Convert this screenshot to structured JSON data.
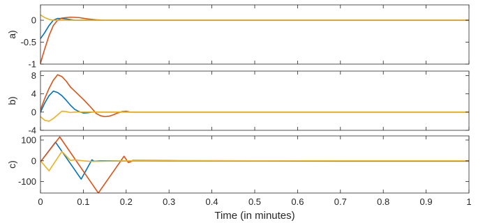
{
  "chart_data": {
    "type": "line",
    "xlabel": "Time (in minutes)",
    "x_ticks": [
      "0",
      "0.1",
      "0.2",
      "0.3",
      "0.4",
      "0.5",
      "0.6",
      "0.7",
      "0.8",
      "0.9",
      "1"
    ],
    "xlim": [
      0,
      1
    ],
    "colors": {
      "s1": "#0072BD",
      "s2": "#D95319",
      "s3": "#EDB120"
    },
    "panels": [
      {
        "label": "a)",
        "ylim": [
          -1,
          0.35
        ],
        "y_ticks": [
          "0",
          "-0.5",
          "-1"
        ],
        "y_tick_values": [
          0,
          -0.5,
          -1
        ],
        "series": [
          {
            "color": "#0072BD",
            "points": [
              [
                0,
                -0.42
              ],
              [
                0.01,
                -0.28
              ],
              [
                0.02,
                -0.12
              ],
              [
                0.03,
                0.0
              ],
              [
                0.04,
                0.04
              ],
              [
                0.05,
                0.04
              ],
              [
                0.06,
                0.03
              ],
              [
                0.08,
                0.0
              ],
              [
                0.1,
                0.0
              ],
              [
                1,
                0.0
              ]
            ]
          },
          {
            "color": "#D95319",
            "points": [
              [
                0,
                -0.98
              ],
              [
                0.01,
                -0.65
              ],
              [
                0.02,
                -0.35
              ],
              [
                0.03,
                -0.12
              ],
              [
                0.04,
                0.0
              ],
              [
                0.05,
                0.05
              ],
              [
                0.07,
                0.07
              ],
              [
                0.09,
                0.06
              ],
              [
                0.11,
                0.03
              ],
              [
                0.13,
                0.01
              ],
              [
                0.15,
                0.0
              ],
              [
                1,
                0.0
              ]
            ]
          },
          {
            "color": "#EDB120",
            "points": [
              [
                0,
                0.12
              ],
              [
                0.01,
                0.06
              ],
              [
                0.02,
                0.02
              ],
              [
                0.03,
                0.0
              ],
              [
                1,
                0.0
              ]
            ]
          }
        ]
      },
      {
        "label": "b)",
        "ylim": [
          -4,
          9
        ],
        "y_ticks": [
          "8",
          "4",
          "0",
          "-4"
        ],
        "y_tick_values": [
          8,
          4,
          0,
          -4
        ],
        "series": [
          {
            "color": "#0072BD",
            "points": [
              [
                0,
                0.0
              ],
              [
                0.01,
                2.0
              ],
              [
                0.02,
                3.6
              ],
              [
                0.03,
                4.6
              ],
              [
                0.04,
                4.3
              ],
              [
                0.05,
                3.6
              ],
              [
                0.06,
                2.6
              ],
              [
                0.07,
                1.5
              ],
              [
                0.08,
                0.6
              ],
              [
                0.09,
                0.1
              ],
              [
                0.1,
                -0.2
              ],
              [
                0.11,
                -0.15
              ],
              [
                0.12,
                0.0
              ],
              [
                1,
                0.0
              ]
            ]
          },
          {
            "color": "#D95319",
            "points": [
              [
                0,
                0.5
              ],
              [
                0.01,
                3.0
              ],
              [
                0.02,
                5.2
              ],
              [
                0.03,
                7.0
              ],
              [
                0.04,
                8.2
              ],
              [
                0.05,
                7.8
              ],
              [
                0.06,
                6.8
              ],
              [
                0.07,
                5.5
              ],
              [
                0.08,
                4.6
              ],
              [
                0.09,
                3.7
              ],
              [
                0.1,
                2.8
              ],
              [
                0.11,
                1.8
              ],
              [
                0.12,
                0.8
              ],
              [
                0.13,
                -0.3
              ],
              [
                0.14,
                -0.8
              ],
              [
                0.15,
                -1.0
              ],
              [
                0.16,
                -0.9
              ],
              [
                0.17,
                -0.6
              ],
              [
                0.18,
                -0.2
              ],
              [
                0.19,
                0.1
              ],
              [
                0.2,
                0.2
              ],
              [
                0.21,
                0.0
              ],
              [
                1,
                0.0
              ]
            ]
          },
          {
            "color": "#EDB120",
            "points": [
              [
                0,
                -1.0
              ],
              [
                0.01,
                -1.8
              ],
              [
                0.02,
                -2.0
              ],
              [
                0.03,
                -1.4
              ],
              [
                0.04,
                -0.6
              ],
              [
                0.05,
                0.2
              ],
              [
                0.06,
                0.1
              ],
              [
                0.07,
                -0.1
              ],
              [
                0.08,
                0.0
              ],
              [
                1,
                0.0
              ]
            ]
          }
        ]
      },
      {
        "label": "c)",
        "ylim": [
          -155,
          120
        ],
        "y_ticks": [
          "100",
          "0",
          "-100"
        ],
        "y_tick_values": [
          100,
          0,
          -100
        ],
        "series": [
          {
            "color": "#0072BD",
            "points": [
              [
                0,
                -5
              ],
              [
                0.035,
                90
              ],
              [
                0.095,
                -88
              ],
              [
                0.12,
                5
              ],
              [
                0.125,
                -2
              ],
              [
                0.14,
                0
              ],
              [
                0.3,
                -1
              ],
              [
                0.5,
                -1
              ],
              [
                0.7,
                -2
              ],
              [
                0.9,
                -2
              ],
              [
                1,
                -2
              ]
            ]
          },
          {
            "color": "#D95319",
            "points": [
              [
                0,
                -5
              ],
              [
                0.045,
                115
              ],
              [
                0.135,
                -155
              ],
              [
                0.195,
                22
              ],
              [
                0.205,
                -8
              ],
              [
                0.21,
                -5
              ],
              [
                0.215,
                2
              ],
              [
                0.3,
                1
              ],
              [
                0.5,
                0
              ],
              [
                0.7,
                0
              ],
              [
                1,
                0
              ]
            ]
          },
          {
            "color": "#EDB120",
            "points": [
              [
                0,
                0
              ],
              [
                0.02,
                -48
              ],
              [
                0.05,
                45
              ],
              [
                0.07,
                2
              ],
              [
                0.08,
                5
              ],
              [
                0.1,
                0
              ],
              [
                0.12,
                -3
              ],
              [
                0.2,
                0
              ],
              [
                0.4,
                0
              ],
              [
                0.6,
                0
              ],
              [
                1,
                0
              ]
            ]
          }
        ]
      }
    ]
  }
}
